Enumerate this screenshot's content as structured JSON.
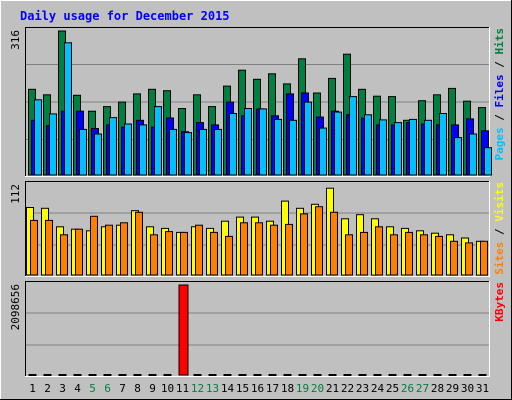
{
  "chart_data": {
    "type": "bar",
    "title": "Daily usage for December 2015",
    "days": [
      "1",
      "2",
      "3",
      "4",
      "5",
      "6",
      "7",
      "8",
      "9",
      "10",
      "11",
      "12",
      "13",
      "14",
      "15",
      "16",
      "17",
      "18",
      "19",
      "20",
      "21",
      "22",
      "23",
      "24",
      "25",
      "26",
      "27",
      "28",
      "29",
      "30",
      "31"
    ],
    "weekend_days": [
      "5",
      "6",
      "12",
      "13",
      "19",
      "20",
      "26",
      "27"
    ],
    "panels": [
      {
        "id": "hits",
        "max_label": "316",
        "ymax": 316,
        "legend": [
          {
            "text": "Hits",
            "color": "#008040"
          },
          {
            "text": "Files",
            "color": "#0000ff"
          },
          {
            "text": "Pages",
            "color": "#00c0ff"
          }
        ],
        "series": [
          {
            "name": "Hits",
            "color": "#008040",
            "values": [
              188,
              176,
              316,
              175,
              140,
              150,
              160,
              178,
              188,
              185,
              146,
              176,
              150,
              195,
              230,
              210,
              222,
              200,
              255,
              180,
              212,
              265,
              188,
              173,
              172,
              120,
              163,
              176,
              190,
              162,
              148
            ]
          },
          {
            "name": "Files",
            "color": "#0000ff",
            "values": [
              120,
              108,
              140,
              140,
              102,
              110,
              105,
              120,
              105,
              125,
              95,
              115,
              110,
              160,
              130,
              145,
              130,
              178,
              180,
              127,
              140,
              132,
              125,
              110,
              110,
              115,
              112,
              110,
              110,
              123,
              97
            ]
          },
          {
            "name": "Pages",
            "color": "#00c0ff",
            "values": [
              165,
              134,
              290,
              100,
              90,
              126,
              112,
              110,
              150,
              100,
              93,
              100,
              100,
              135,
              146,
              145,
              122,
              120,
              160,
              103,
              138,
              172,
              132,
              121,
              115,
              122,
              120,
              135,
              82,
              90,
              60
            ]
          }
        ]
      },
      {
        "id": "visits",
        "max_label": "112",
        "ymax": 112,
        "legend": [
          {
            "text": "Visits",
            "color": "#ffff00"
          },
          {
            "text": "Sites",
            "color": "#ff8000"
          }
        ],
        "series": [
          {
            "name": "Visits",
            "color": "#ffff00",
            "values": [
              84,
              83,
              60,
              57,
              55,
              60,
              62,
              80,
              60,
              58,
              53,
              60,
              58,
              67,
              72,
              72,
              67,
              92,
              83,
              88,
              108,
              70,
              75,
              70,
              60,
              58,
              55,
              52,
              50,
              46,
              42
            ]
          },
          {
            "name": "Sites",
            "color": "#ff8000",
            "values": [
              68,
              68,
              50,
              57,
              73,
              62,
              65,
              78,
              50,
              54,
              53,
              62,
              53,
              48,
              65,
              65,
              62,
              63,
              76,
              85,
              78,
              50,
              53,
              60,
              50,
              53,
              50,
              48,
              42,
              40,
              42
            ]
          }
        ]
      },
      {
        "id": "kbytes",
        "max_label": "2098656",
        "ymax": 2098656,
        "legend": [
          {
            "text": "KBytes",
            "color": "#ff0000"
          }
        ],
        "series": [
          {
            "name": "KBytes",
            "color": "#ff0000",
            "values": [
              0,
              0,
              0,
              0,
              0,
              0,
              0,
              0,
              0,
              0,
              2098656,
              0,
              0,
              0,
              0,
              0,
              0,
              0,
              0,
              0,
              0,
              0,
              0,
              0,
              0,
              0,
              0,
              0,
              0,
              0,
              0
            ]
          }
        ]
      }
    ]
  }
}
